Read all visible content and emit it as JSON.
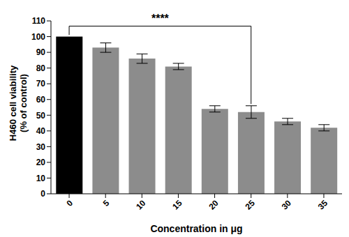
{
  "chart_data": {
    "type": "bar",
    "categories": [
      "0",
      "5",
      "10",
      "15",
      "20",
      "25",
      "30",
      "35"
    ],
    "values": [
      100,
      93,
      86,
      81,
      54,
      52,
      46,
      42
    ],
    "errors": [
      0,
      3,
      3,
      2,
      2,
      4,
      2,
      2
    ],
    "colors": [
      "#000000",
      "#8c8c8c",
      "#8c8c8c",
      "#8c8c8c",
      "#8c8c8c",
      "#8c8c8c",
      "#8c8c8c",
      "#8c8c8c"
    ],
    "x_label": "Concentration in μg",
    "y_label": [
      "H460 cell viability",
      "(% of control)"
    ],
    "ylim": [
      0,
      110
    ],
    "yticks": [
      0,
      10,
      20,
      30,
      40,
      50,
      60,
      70,
      80,
      90,
      100,
      110
    ],
    "grid": false,
    "annotations": [
      {
        "text": "****",
        "from": "0",
        "to": "25"
      }
    ]
  }
}
